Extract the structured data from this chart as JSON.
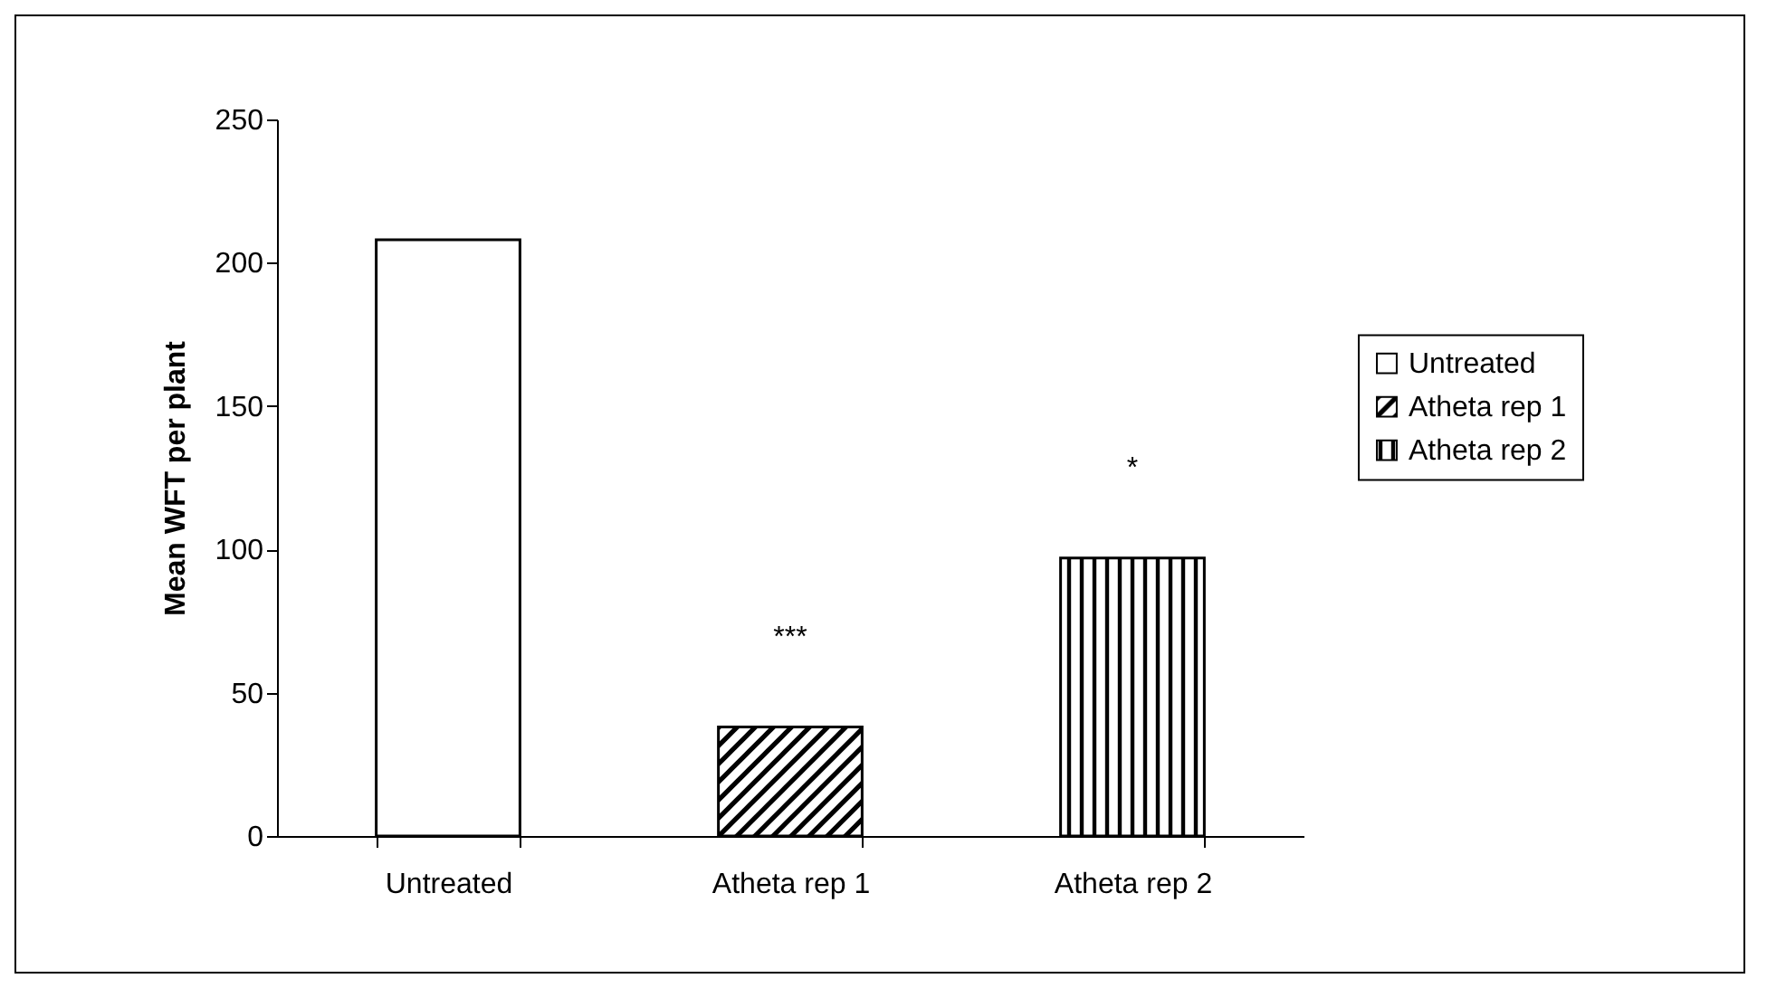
{
  "chart_data": {
    "type": "bar",
    "ylabel": "Mean WFT per plant",
    "categories": [
      "Untreated",
      "Atheta rep 1",
      "Atheta rep 2"
    ],
    "series": [
      {
        "name": "Untreated",
        "color": "#ffffff",
        "values": [
          208,
          null,
          null
        ]
      },
      {
        "name": "Atheta rep 1",
        "color": "#000000",
        "values": [
          null,
          38,
          null
        ]
      },
      {
        "name": "Atheta rep 2",
        "color": "#000000",
        "values": [
          null,
          null,
          97
        ]
      }
    ],
    "ylim": [
      0,
      250
    ],
    "yticks": [
      0,
      50,
      100,
      150,
      200,
      250
    ],
    "grid": false,
    "legend": "right",
    "annotations": [
      "***",
      "*"
    ]
  }
}
